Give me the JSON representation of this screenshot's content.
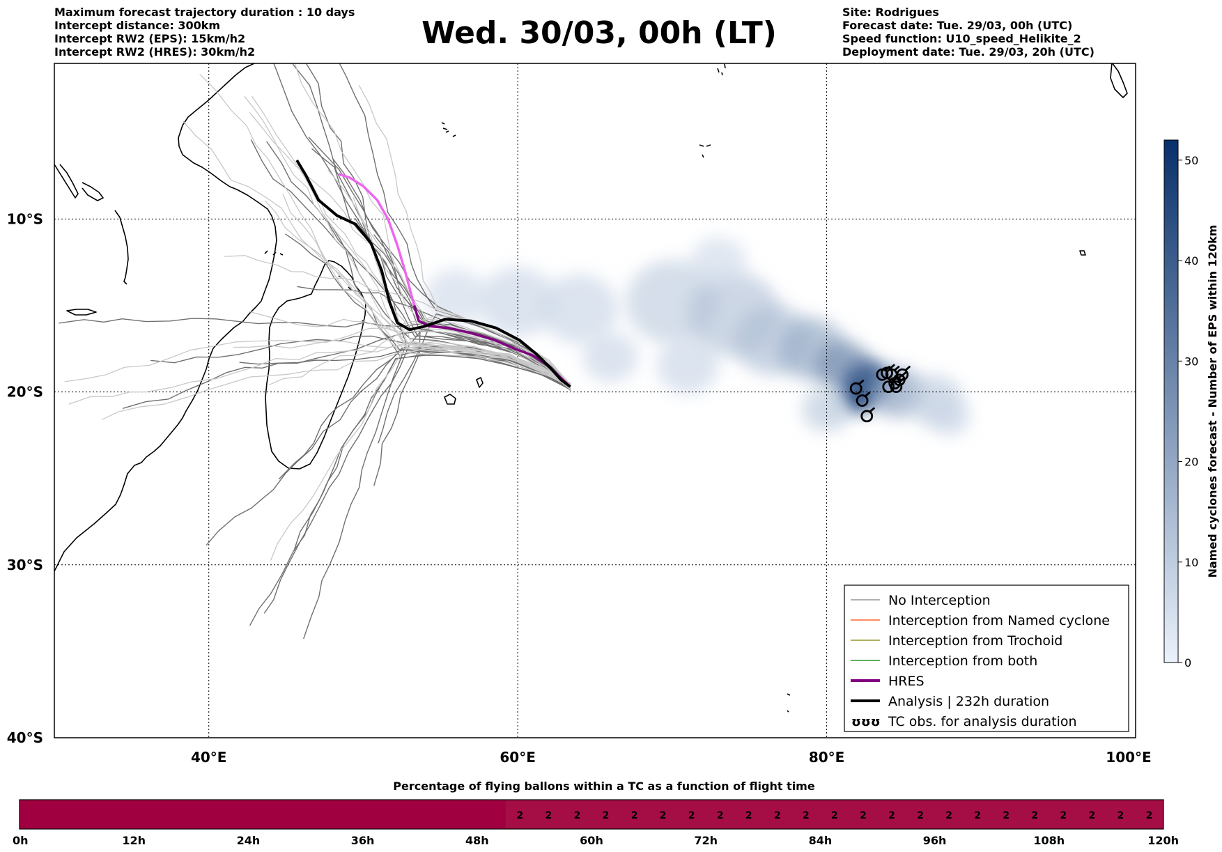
{
  "header": {
    "left_lines": [
      "Maximum forecast trajectory duration : 10 days",
      "Intercept distance: 300km",
      "Intercept RW2 (EPS):  15km/h2",
      "Intercept RW2 (HRES): 30km/h2"
    ],
    "title": "Wed. 30/03, 00h (LT)",
    "right_lines": [
      "Site: Rodrigues",
      "Forecast date: Tue. 29/03, 00h (UTC)",
      "Speed function: U10_speed_Helikite_2",
      "Deployment date: Tue. 29/03, 20h (UTC)"
    ]
  },
  "map": {
    "lon_range": [
      30,
      100
    ],
    "lat_range": [
      -40,
      -1
    ],
    "lon_ticks": [
      {
        "value": 40,
        "label": "40°E"
      },
      {
        "value": 60,
        "label": "60°E"
      },
      {
        "value": 80,
        "label": "80°E"
      },
      {
        "value": 100,
        "label": "100°E"
      }
    ],
    "lat_ticks": [
      {
        "value": -10,
        "label": "10°S"
      },
      {
        "value": -20,
        "label": "20°S"
      },
      {
        "value": -30,
        "label": "30°S"
      },
      {
        "value": -40,
        "label": "40°S"
      }
    ],
    "grid": "dotted",
    "launch_point": {
      "lon": 63.4,
      "lat": -19.7
    },
    "hres_track": [
      [
        63.4,
        -19.7
      ],
      [
        62.8,
        -19.2
      ],
      [
        62.0,
        -18.5
      ],
      [
        61.0,
        -17.9
      ],
      [
        59.8,
        -17.5
      ],
      [
        58.5,
        -17.0
      ],
      [
        57.0,
        -16.6
      ],
      [
        55.5,
        -16.3
      ],
      [
        54.3,
        -16.2
      ],
      [
        53.6,
        -15.9
      ],
      [
        53.3,
        -15.0
      ],
      [
        53.0,
        -14.0
      ],
      [
        52.7,
        -13.0
      ],
      [
        52.2,
        -11.5
      ],
      [
        51.6,
        -10.0
      ],
      [
        50.9,
        -8.9
      ],
      [
        50.0,
        -8.1
      ],
      [
        49.1,
        -7.6
      ],
      [
        48.4,
        -7.4
      ]
    ],
    "analysis_track": [
      [
        63.4,
        -19.7
      ],
      [
        62.8,
        -19.3
      ],
      [
        62.1,
        -18.6
      ],
      [
        61.2,
        -17.8
      ],
      [
        60.1,
        -17.0
      ],
      [
        58.6,
        -16.3
      ],
      [
        57.0,
        -15.9
      ],
      [
        55.3,
        -15.8
      ],
      [
        54.0,
        -16.2
      ],
      [
        53.0,
        -16.4
      ],
      [
        52.2,
        -16.0
      ],
      [
        51.7,
        -14.8
      ],
      [
        51.2,
        -13.0
      ],
      [
        50.5,
        -11.4
      ],
      [
        49.5,
        -10.3
      ],
      [
        48.3,
        -9.8
      ],
      [
        47.1,
        -8.9
      ],
      [
        46.3,
        -7.5
      ],
      [
        45.7,
        -6.6
      ]
    ],
    "tc_obs": [
      [
        81.9,
        -19.8
      ],
      [
        82.3,
        -20.5
      ],
      [
        82.6,
        -21.4
      ],
      [
        83.6,
        -19.0
      ],
      [
        83.9,
        -18.9
      ],
      [
        84.0,
        -19.7
      ],
      [
        84.2,
        -19.0
      ],
      [
        84.4,
        -19.5
      ],
      [
        84.5,
        -19.7
      ],
      [
        84.7,
        -19.3
      ],
      [
        84.9,
        -19.0
      ]
    ],
    "density_blobs": [
      [
        56.0,
        -14.5,
        2.0,
        0.06
      ],
      [
        60.0,
        -14.8,
        2.5,
        0.07
      ],
      [
        64.0,
        -15.2,
        2.5,
        0.07
      ],
      [
        66.0,
        -18.0,
        1.8,
        0.07
      ],
      [
        70.0,
        -14.8,
        3.0,
        0.09
      ],
      [
        71.0,
        -18.5,
        2.0,
        0.07
      ],
      [
        74.0,
        -15.5,
        3.0,
        0.11
      ],
      [
        73.0,
        -12.5,
        1.8,
        0.06
      ],
      [
        76.5,
        -17.0,
        2.5,
        0.12
      ],
      [
        79.0,
        -17.5,
        2.2,
        0.16
      ],
      [
        81.0,
        -18.5,
        1.8,
        0.22
      ],
      [
        82.5,
        -19.3,
        1.5,
        0.3
      ],
      [
        82.0,
        -20.3,
        1.1,
        0.4
      ],
      [
        83.0,
        -19.5,
        1.0,
        0.38
      ],
      [
        84.5,
        -20.0,
        1.8,
        0.18
      ],
      [
        87.0,
        -20.5,
        1.8,
        0.1
      ],
      [
        88.0,
        -21.5,
        1.3,
        0.07
      ],
      [
        80.0,
        -21.0,
        1.6,
        0.1
      ]
    ]
  },
  "legend": {
    "entries": [
      {
        "label": "No Interception",
        "color": "#808080",
        "width": 1.2
      },
      {
        "label": "Interception from Named cyclone",
        "color": "#ff4500",
        "width": 1.2
      },
      {
        "label": "Interception from Trochoid",
        "color": "#808000",
        "width": 1.2
      },
      {
        "label": "Interception from both",
        "color": "#008000",
        "width": 1.2
      },
      {
        "label": "HRES",
        "color": "#800080",
        "width": 4
      },
      {
        "label": "Analysis | 232h duration",
        "color": "#000000",
        "width": 4
      },
      {
        "label": "TC obs. for analysis duration",
        "color": "#000000",
        "width": 0,
        "symbol": "ʊʊʊ"
      }
    ]
  },
  "colorbar": {
    "label": "Named cyclones forecast - Number of EPS within 120km",
    "min": 0,
    "max": 52,
    "ticks": [
      {
        "value": 0,
        "label": "0"
      },
      {
        "value": 10,
        "label": "10"
      },
      {
        "value": 20,
        "label": "20"
      },
      {
        "value": 30,
        "label": "30"
      },
      {
        "value": 40,
        "label": "40"
      },
      {
        "value": 50,
        "label": "50"
      }
    ],
    "color_low": "#eaf2fb",
    "color_high": "#08306b"
  },
  "flight_bar": {
    "title": "Percentage of flying ballons within a TC as a function of flight time",
    "max_hours": 120,
    "start_hour": 51,
    "value_label": "2",
    "value_count": 23,
    "tick_labels": [
      "0h",
      "12h",
      "24h",
      "36h",
      "48h",
      "60h",
      "72h",
      "84h",
      "96h",
      "108h",
      "120h"
    ],
    "fill_color": "#a10040",
    "value_color": "#a50e45"
  }
}
